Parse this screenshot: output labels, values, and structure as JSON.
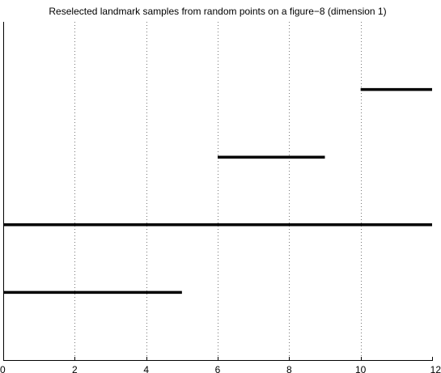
{
  "chart_data": {
    "type": "barcode",
    "title": "Reselected landmark samples from random points on a figure−8 (dimension 1)",
    "xlabel": "",
    "ylabel": "",
    "xlim": [
      0,
      12
    ],
    "x_ticks": [
      0,
      2,
      4,
      6,
      8,
      10,
      12
    ],
    "x_tick_labels": [
      "0",
      "2",
      "4",
      "6",
      "8",
      "10",
      "12"
    ],
    "grid": "vertical dotted",
    "intervals": [
      {
        "start": 10,
        "end": 12,
        "infinite": true
      },
      {
        "start": 6,
        "end": 9,
        "infinite": false
      },
      {
        "start": 0,
        "end": 12,
        "infinite": true
      },
      {
        "start": 0,
        "end": 5,
        "infinite": false
      }
    ]
  }
}
